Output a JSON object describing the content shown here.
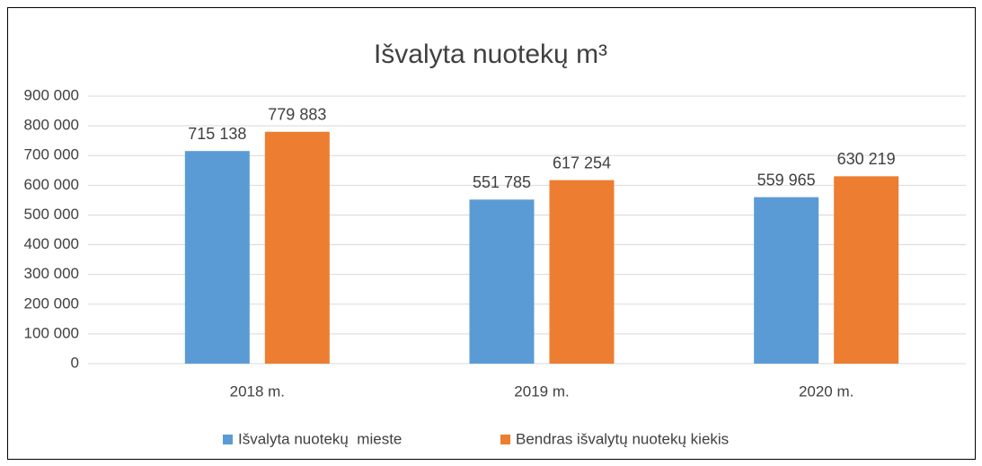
{
  "chart_data": {
    "type": "bar",
    "title": "Išvalyta nuotekų m³",
    "categories": [
      "2018 m.",
      "2019 m.",
      "2020 m."
    ],
    "series": [
      {
        "name": "Išvalyta nuotekų  mieste",
        "color": "#5b9bd5",
        "values": [
          715138,
          551785,
          559965
        ],
        "value_labels": [
          "715 138",
          "551 785",
          "559 965"
        ]
      },
      {
        "name": "Bendras išvalytų nuotekų kiekis",
        "color": "#ed7d31",
        "values": [
          779883,
          617254,
          630219
        ],
        "value_labels": [
          "779 883",
          "617 254",
          "630 219"
        ]
      }
    ],
    "ylim": [
      0,
      900000
    ],
    "yticks": [
      0,
      {
        "value": 100000,
        "label": "100 000"
      },
      {
        "value": 200000,
        "label": "200 000"
      },
      {
        "value": 300000,
        "label": "300 000"
      },
      {
        "value": 400000,
        "label": "400 000"
      },
      {
        "value": 500000,
        "label": "500 000"
      },
      {
        "value": 600000,
        "label": "600 000"
      },
      {
        "value": 700000,
        "label": "700 000"
      },
      {
        "value": 800000,
        "label": "800 000"
      },
      {
        "value": 900000,
        "label": "900 000"
      }
    ],
    "grid": true,
    "legend": "bottom"
  }
}
